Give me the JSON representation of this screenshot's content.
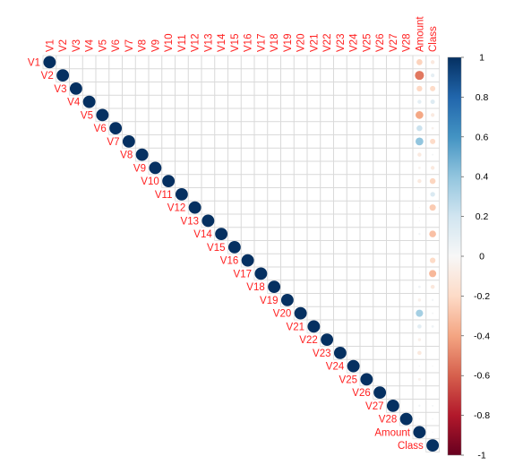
{
  "chart_data": {
    "type": "heatmap",
    "subtype": "correlation-upper-triangle-circles",
    "variables": [
      "V1",
      "V2",
      "V3",
      "V4",
      "V5",
      "V6",
      "V7",
      "V8",
      "V9",
      "V10",
      "V11",
      "V12",
      "V13",
      "V14",
      "V15",
      "V16",
      "V17",
      "V18",
      "V19",
      "V20",
      "V21",
      "V22",
      "V23",
      "V24",
      "V25",
      "V26",
      "V27",
      "V28",
      "Amount",
      "Class"
    ],
    "correlations_with_Amount": [
      -0.23,
      -0.53,
      -0.21,
      0.1,
      -0.39,
      0.22,
      0.4,
      -0.1,
      -0.04,
      -0.1,
      0.0,
      -0.01,
      0.01,
      0.03,
      -0.0,
      -0.0,
      0.01,
      0.04,
      -0.06,
      0.34,
      0.11,
      -0.06,
      -0.11,
      0.01,
      -0.05,
      -0.0,
      0.03,
      0.01,
      1.0,
      0.01
    ],
    "correlations_with_Class": [
      -0.1,
      0.09,
      -0.19,
      0.13,
      -0.09,
      -0.04,
      -0.19,
      0.02,
      -0.1,
      -0.22,
      0.15,
      -0.26,
      -0.0,
      -0.3,
      -0.0,
      -0.2,
      -0.33,
      -0.11,
      0.03,
      0.02,
      0.04,
      0.0,
      -0.0,
      -0.01,
      0.0,
      0.0,
      0.02,
      0.01,
      0.01,
      1.0
    ],
    "colorbar": {
      "min": -1,
      "max": 1,
      "ticks": [
        "1",
        "0.8",
        "0.6",
        "0.4",
        "0.2",
        "0",
        "-0.2",
        "-0.4",
        "-0.6",
        "-0.8",
        "-1"
      ]
    },
    "colors": {
      "negative": "#67001F",
      "neutral": "#F7F7F7",
      "positive": "#053061",
      "grid": "#d9d9d9",
      "label": "#ff2020"
    },
    "grid": true,
    "legend": "right"
  }
}
